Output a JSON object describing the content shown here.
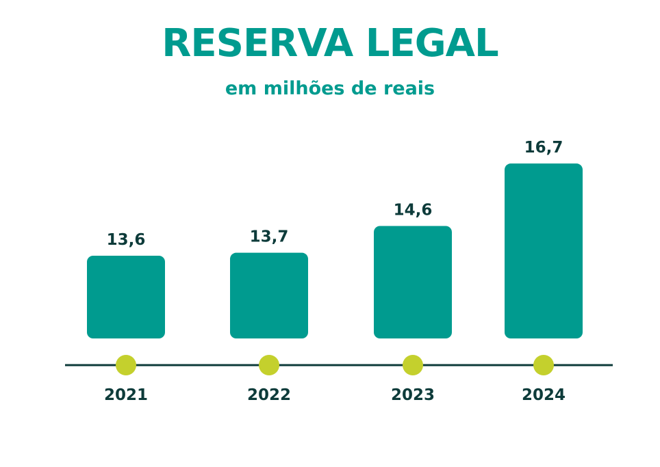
{
  "colors": {
    "title": "#009b8f",
    "bar": "#009b8f",
    "axis": "#0d3b3a",
    "marker": "#c4d02d",
    "text": "#0d3b3a"
  },
  "chart_data": {
    "type": "bar",
    "title": "RESERVA LEGAL",
    "subtitle": "em milhões de reais",
    "categories": [
      "2021",
      "2022",
      "2023",
      "2024"
    ],
    "values": [
      13.6,
      13.7,
      14.6,
      16.7
    ],
    "value_labels": [
      "13,6",
      "13,7",
      "14,6",
      "16,7"
    ],
    "xlabel": "",
    "ylabel": "",
    "grid": false,
    "legend": "none"
  }
}
